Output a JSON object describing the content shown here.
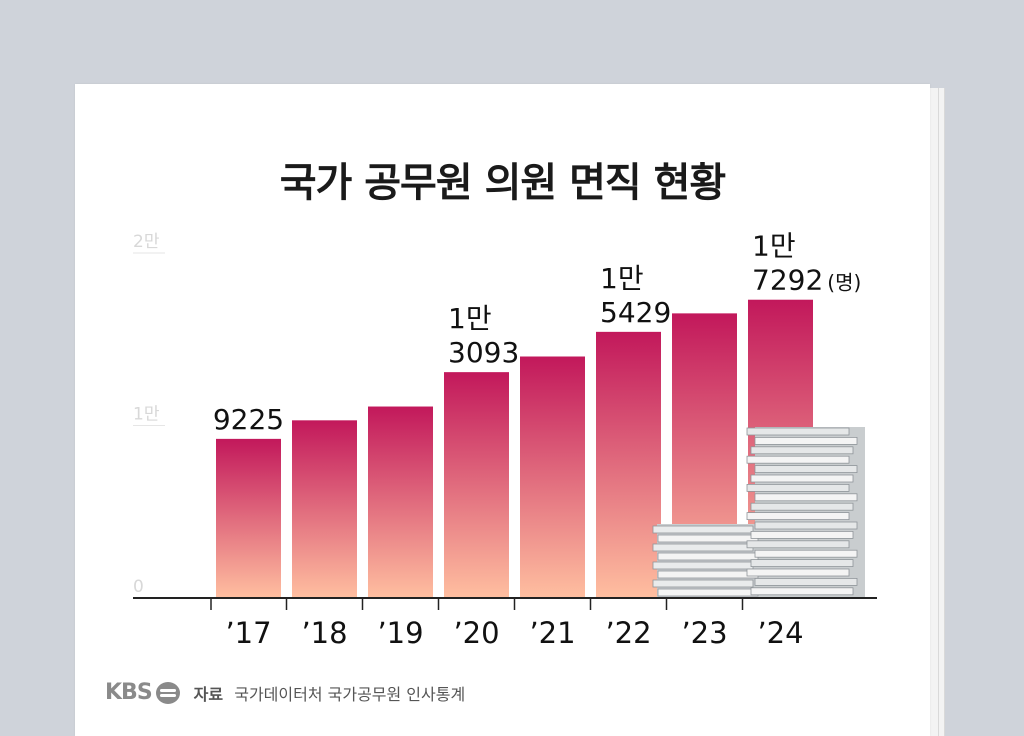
{
  "title": "국가 공무원 의원 면직 현황",
  "footer": {
    "brand": "KBS",
    "source_label": "자료",
    "source_text": "국가데이터처 국가공무원 인사통계"
  },
  "chart_data": {
    "type": "bar",
    "title": "국가 공무원 의원 면직 현황",
    "categories": [
      "’17",
      "’18",
      "’19",
      "’20",
      "’21",
      "’22",
      "’23",
      "’24"
    ],
    "values": [
      9225,
      10300,
      11100,
      13093,
      14000,
      15429,
      16500,
      17292
    ],
    "value_labels": [
      [
        "9225"
      ],
      null,
      null,
      [
        "1만",
        "3093"
      ],
      null,
      [
        "1만",
        "5429"
      ],
      null,
      [
        "1만",
        "7292"
      ]
    ],
    "unit_label": "(명)",
    "yticks": [
      {
        "value": 0,
        "label": "0"
      },
      {
        "value": 10000,
        "label": "1만"
      },
      {
        "value": 20000,
        "label": "2만"
      }
    ],
    "ylim": [
      0,
      20000
    ],
    "grid": false,
    "colors": {
      "bar_top": "#c2185b",
      "bar_bottom": "#ffbfa0",
      "axis": "#222222"
    }
  }
}
